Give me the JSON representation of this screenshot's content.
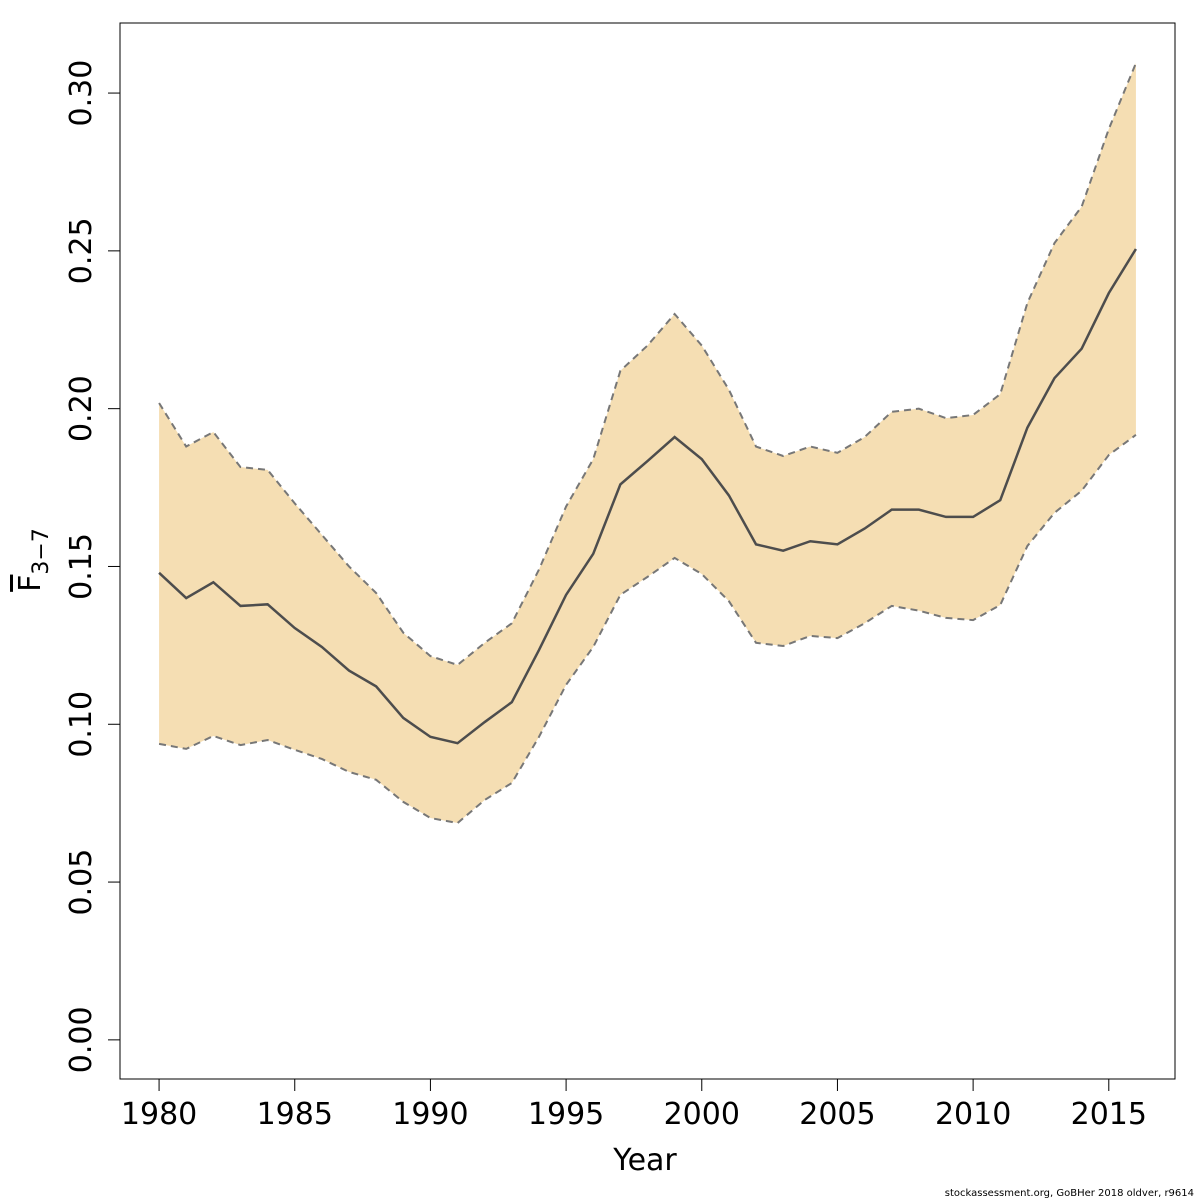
{
  "chart_data": {
    "type": "band-line",
    "x_label": "Year",
    "y_label": "F",
    "y_label_subscript": "3−7",
    "footer": "stockassessment.org, GoBHer 2018 oldver, r9614",
    "x": [
      1980,
      1981,
      1982,
      1983,
      1984,
      1985,
      1986,
      1987,
      1988,
      1989,
      1990,
      1991,
      1992,
      1993,
      1994,
      1995,
      1996,
      1997,
      1998,
      1999,
      2000,
      2001,
      2002,
      2003,
      2004,
      2005,
      2006,
      2007,
      2008,
      2009,
      2010,
      2011,
      2012,
      2013,
      2014,
      2015,
      2016
    ],
    "values": [
      0.148,
      0.14,
      0.145,
      0.1375,
      0.138,
      0.1305,
      0.1245,
      0.117,
      0.112,
      0.102,
      0.096,
      0.094,
      0.1007,
      0.107,
      0.1235,
      0.141,
      0.154,
      0.176,
      0.1834,
      0.191,
      0.184,
      0.1725,
      0.157,
      0.155,
      0.158,
      0.157,
      0.162,
      0.168,
      0.168,
      0.1657,
      0.1657,
      0.171,
      0.194,
      0.2097,
      0.219,
      0.2366,
      0.2506
    ],
    "upper": [
      0.2018,
      0.188,
      0.1926,
      0.1815,
      0.1806,
      0.17,
      0.16,
      0.15,
      0.1416,
      0.129,
      0.1216,
      0.1188,
      0.1258,
      0.132,
      0.149,
      0.169,
      0.184,
      0.212,
      0.22,
      0.23,
      0.22,
      0.206,
      0.188,
      0.185,
      0.188,
      0.186,
      0.191,
      0.199,
      0.2,
      0.197,
      0.198,
      0.2046,
      0.2335,
      0.2525,
      0.264,
      0.2886,
      0.3095
    ],
    "lower": [
      0.0938,
      0.0922,
      0.0963,
      0.0934,
      0.095,
      0.0919,
      0.089,
      0.0849,
      0.0824,
      0.0754,
      0.0703,
      0.0687,
      0.076,
      0.0814,
      0.096,
      0.1125,
      0.1245,
      0.141,
      0.1467,
      0.1527,
      0.1476,
      0.139,
      0.1258,
      0.1248,
      0.128,
      0.1273,
      0.132,
      0.1375,
      0.136,
      0.1337,
      0.133,
      0.1378,
      0.1565,
      0.167,
      0.174,
      0.1853,
      0.1917
    ],
    "color": "#4d4d4d",
    "band_color": "#f5deb3",
    "band_edge_color": "#777777",
    "xlim": [
      1978.56,
      2017.44
    ],
    "ylim": [
      -0.0124,
      0.3222
    ],
    "xticks": [
      1980,
      1985,
      1990,
      1995,
      2000,
      2005,
      2010,
      2015
    ],
    "yticks": [
      {
        "value": 0,
        "label": "0.00"
      },
      {
        "value": 0.05,
        "label": "0.05"
      },
      {
        "value": 0.1,
        "label": "0.10"
      },
      {
        "value": 0.15,
        "label": "0.15"
      },
      {
        "value": 0.2,
        "label": "0.20"
      },
      {
        "value": 0.25,
        "label": "0.25"
      },
      {
        "value": 0.3,
        "label": "0.30"
      }
    ]
  }
}
